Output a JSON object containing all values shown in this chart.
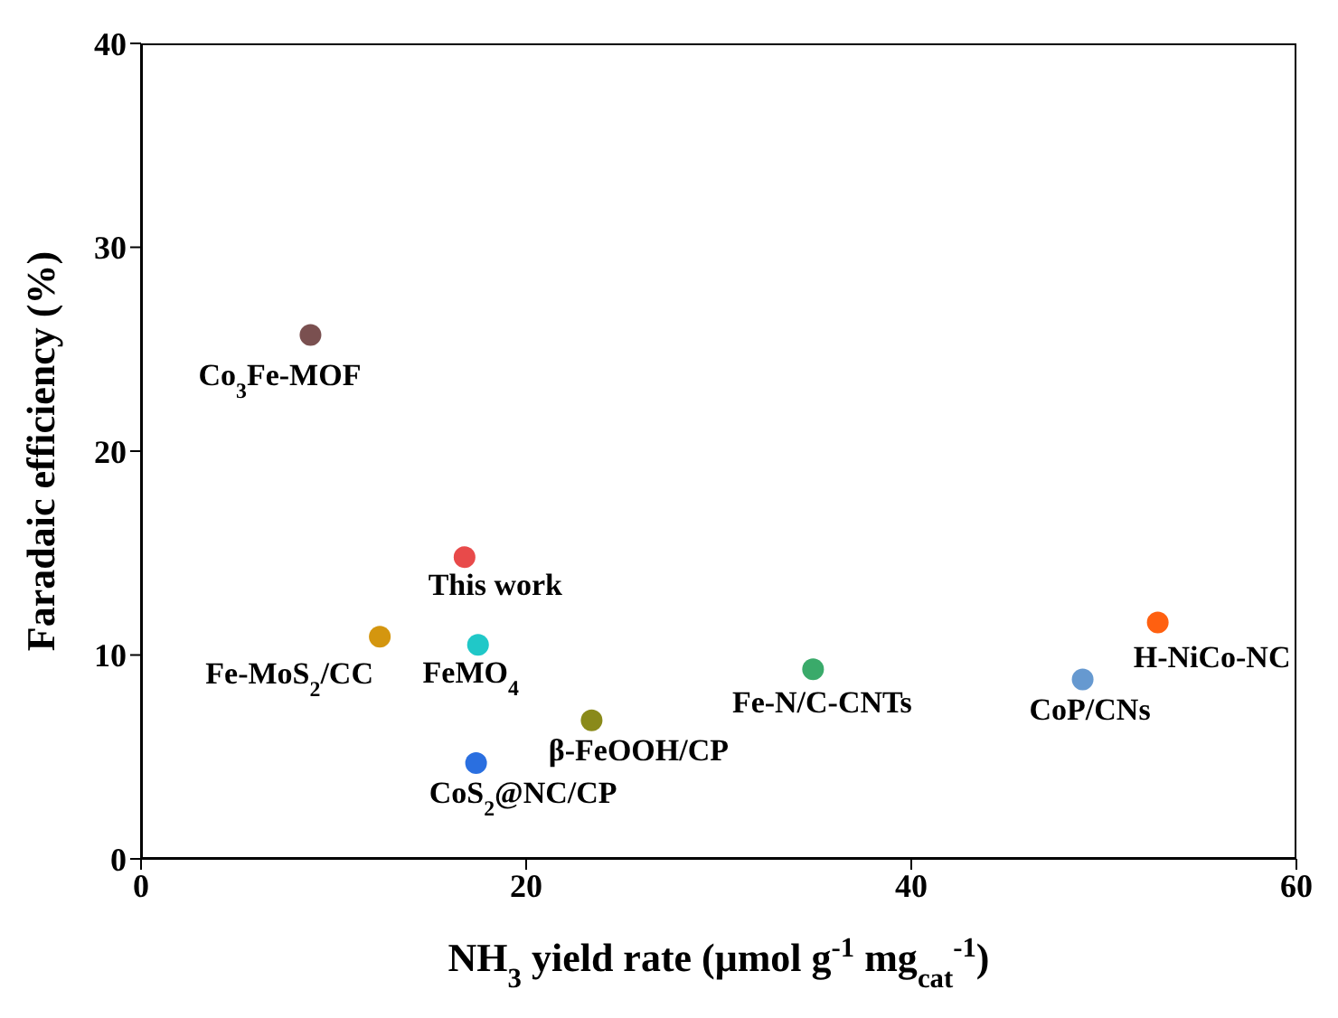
{
  "chart_data": {
    "type": "scatter",
    "xlabel": "NH$_{3}$ yield rate (μmol g$^{-1}$ mg$_{cat}$$^{-1}$)",
    "ylabel": "Faradaic efficiency (%)",
    "xlim": [
      0,
      60
    ],
    "xticks": [
      0,
      20,
      40,
      60
    ],
    "ylim": [
      0,
      40
    ],
    "yticks": [
      0,
      10,
      20,
      30,
      40
    ],
    "grid": false,
    "legend": false,
    "marker": "circle",
    "series": [
      {
        "name": "Co$_{3}$Fe-MOF",
        "color": "#7a5050",
        "x": [
          8.8
        ],
        "values": [
          25.7
        ]
      },
      {
        "name": "This work",
        "color": "#e84a4a",
        "x": [
          16.8
        ],
        "values": [
          14.8
        ]
      },
      {
        "name": "Fe-MoS$_{2}$/CC",
        "color": "#d4960f",
        "x": [
          12.4
        ],
        "values": [
          10.9
        ]
      },
      {
        "name": "FeMO$_{4}$",
        "color": "#20c8c8",
        "x": [
          17.5
        ],
        "values": [
          10.5
        ]
      },
      {
        "name": "CoS$_{2}$@NC/CP",
        "color": "#2a6fe0",
        "x": [
          17.4
        ],
        "values": [
          4.7
        ]
      },
      {
        "name": "β-FeOOH/CP",
        "color": "#8a8a1a",
        "x": [
          23.4
        ],
        "values": [
          6.8
        ]
      },
      {
        "name": "Fe-N/C-CNTs",
        "color": "#3aaa6a",
        "x": [
          34.9
        ],
        "values": [
          9.3
        ]
      },
      {
        "name": "CoP/CNs",
        "color": "#6699d0",
        "x": [
          48.9
        ],
        "values": [
          8.8
        ]
      },
      {
        "name": "H-NiCo-NC",
        "color": "#ff6010",
        "x": [
          52.8
        ],
        "values": [
          11.6
        ]
      }
    ]
  }
}
